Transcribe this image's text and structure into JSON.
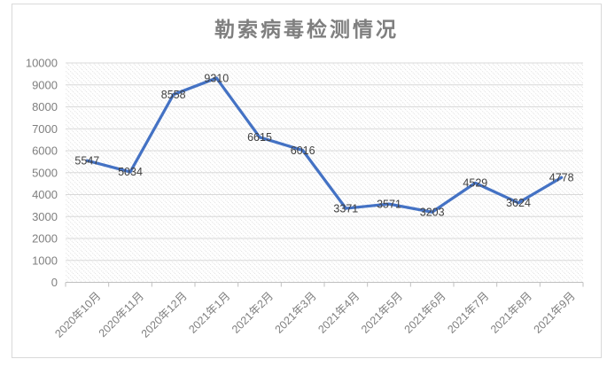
{
  "page": {
    "background": "#ffffff"
  },
  "chart_data": {
    "type": "line",
    "title": "勒索病毒检测情况",
    "categories": [
      "2020年10月",
      "2020年11月",
      "2020年12月",
      "2021年1月",
      "2021年2月",
      "2021年3月",
      "2021年4月",
      "2021年5月",
      "2021年6月",
      "2021年7月",
      "2021年8月",
      "2021年9月"
    ],
    "values": [
      5547,
      5034,
      8558,
      9310,
      6615,
      6016,
      3371,
      3571,
      3203,
      4529,
      3624,
      4778
    ],
    "ylim": [
      0,
      10000
    ],
    "y_tick_interval": 1000,
    "y_tick_labels": [
      "0",
      "1000",
      "2000",
      "3000",
      "4000",
      "5000",
      "6000",
      "7000",
      "8000",
      "9000",
      "10000"
    ],
    "xlabel": "",
    "ylabel": "",
    "x_label_rotation_deg": -45,
    "grid": "horizontal",
    "legend_position": "none",
    "data_labels": true,
    "data_label_position": "center",
    "plot_area_fill": "light-downward-diagonal-hatch",
    "colors": {
      "line": "#4472c4",
      "title": "#7f7f7f",
      "axis_labels": "#7f7f7f",
      "data_labels": "#404040",
      "gridline": "#d9d9d9",
      "axis_line": "#bfbfbf",
      "hatch": "#e0e0e0",
      "frame_border": "#d9d9d9",
      "background": "#ffffff"
    }
  }
}
